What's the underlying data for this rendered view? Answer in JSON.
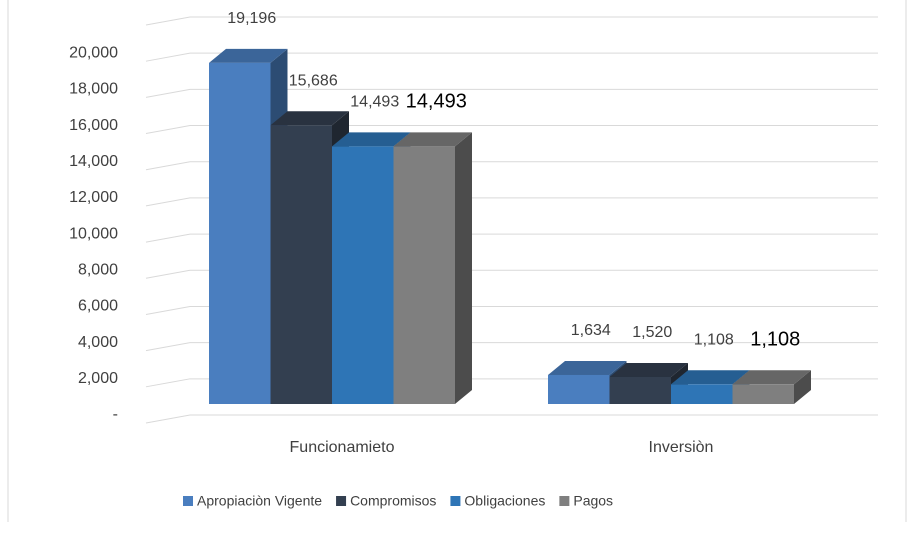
{
  "chart_data": {
    "type": "bar3d",
    "categories": [
      "Funcionamieto",
      "Inversiòn"
    ],
    "series": [
      {
        "name": "Apropiaciòn Vigente",
        "color": "#4a7ebf",
        "values": [
          19196,
          1634
        ],
        "value_labels": [
          "19,196",
          "1,634"
        ]
      },
      {
        "name": "Compromisos",
        "color": "#333f50",
        "values": [
          15686,
          1520
        ],
        "value_labels": [
          "15,686",
          "1,520"
        ]
      },
      {
        "name": "Obligaciones",
        "color": "#2e75b6",
        "values": [
          14493,
          1108
        ],
        "value_labels": [
          "14,493",
          "1,108"
        ]
      },
      {
        "name": "Pagos",
        "color": "#7f7f7f",
        "values": [
          14493,
          1108
        ],
        "value_labels": [
          "14,493",
          "1,108"
        ]
      }
    ],
    "ylim": [
      0,
      22000
    ],
    "yticks": [
      {
        "value": 0,
        "label": "-"
      },
      {
        "value": 2000,
        "label": "2,000"
      },
      {
        "value": 4000,
        "label": "4,000"
      },
      {
        "value": 6000,
        "label": "6,000"
      },
      {
        "value": 8000,
        "label": "8,000"
      },
      {
        "value": 10000,
        "label": "10,000"
      },
      {
        "value": 12000,
        "label": "12,000"
      },
      {
        "value": 14000,
        "label": "14,000"
      },
      {
        "value": 16000,
        "label": "16,000"
      },
      {
        "value": 18000,
        "label": "18,000"
      },
      {
        "value": 20000,
        "label": "20,000"
      }
    ],
    "grid": true,
    "legend": "bottom"
  }
}
